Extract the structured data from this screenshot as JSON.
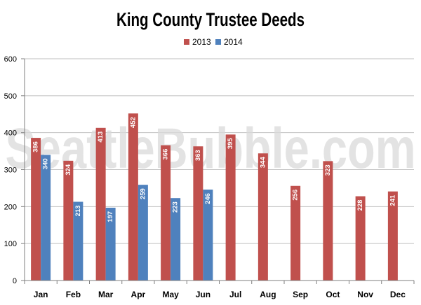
{
  "chart_data": {
    "type": "bar",
    "title": "King County Trustee Deeds",
    "watermark": "SeattleBubble.com",
    "categories": [
      "Jan",
      "Feb",
      "Mar",
      "Apr",
      "May",
      "Jun",
      "Jul",
      "Aug",
      "Sep",
      "Oct",
      "Nov",
      "Dec"
    ],
    "series": [
      {
        "name": "2013",
        "color": "#c0504d",
        "values": [
          386,
          324,
          413,
          452,
          366,
          363,
          395,
          344,
          256,
          323,
          228,
          241
        ]
      },
      {
        "name": "2014",
        "color": "#4f81bd",
        "values": [
          340,
          213,
          197,
          259,
          223,
          246,
          null,
          null,
          null,
          null,
          null,
          null
        ]
      }
    ],
    "ylim": [
      0,
      600
    ],
    "yticks": [
      0,
      100,
      200,
      300,
      400,
      500,
      600
    ],
    "xlabel": "",
    "ylabel": "",
    "grid": true,
    "legend": "top-center",
    "data_labels": true
  }
}
